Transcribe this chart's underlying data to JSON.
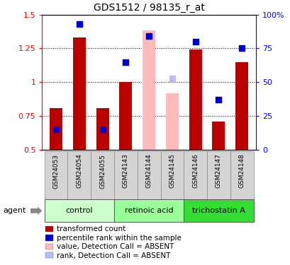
{
  "title": "GDS1512 / 98135_r_at",
  "samples": [
    "GSM24053",
    "GSM24054",
    "GSM24055",
    "GSM24143",
    "GSM24144",
    "GSM24145",
    "GSM24146",
    "GSM24147",
    "GSM24148"
  ],
  "groups": [
    {
      "name": "control",
      "color": "#ccffcc",
      "samples": [
        0,
        1,
        2
      ]
    },
    {
      "name": "retinoic acid",
      "color": "#99ff99",
      "samples": [
        3,
        4,
        5
      ]
    },
    {
      "name": "trichostatin A",
      "color": "#33dd33",
      "samples": [
        6,
        7,
        8
      ]
    }
  ],
  "bar_values": [
    0.81,
    1.33,
    0.81,
    1.0,
    1.385,
    0.92,
    1.24,
    0.71,
    1.15
  ],
  "bar_absent": [
    false,
    false,
    false,
    false,
    true,
    true,
    false,
    false,
    false
  ],
  "rank_values_pct": [
    15,
    93,
    15,
    65,
    84,
    53,
    80,
    37,
    75
  ],
  "rank_absent": [
    false,
    false,
    false,
    false,
    false,
    true,
    false,
    false,
    false
  ],
  "bar_color": "#bb0000",
  "bar_absent_color": "#ffbbbb",
  "rank_color": "#0000cc",
  "rank_absent_color": "#bbbbff",
  "ylim_left": [
    0.5,
    1.5
  ],
  "ylim_right": [
    0,
    100
  ],
  "yticks_left": [
    0.5,
    0.75,
    1.0,
    1.25,
    1.5
  ],
  "ytick_labels_left": [
    "0.5",
    "0.75",
    "1",
    "1.25",
    "1.5"
  ],
  "yticks_right": [
    0,
    25,
    50,
    75,
    100
  ],
  "ytick_labels_right": [
    "0",
    "25",
    "50",
    "75",
    "100%"
  ],
  "bar_width": 0.55,
  "rank_size": 28,
  "legend_items": [
    {
      "color": "#bb0000",
      "label": "transformed count"
    },
    {
      "color": "#0000cc",
      "label": "percentile rank within the sample"
    },
    {
      "color": "#ffbbbb",
      "label": "value, Detection Call = ABSENT"
    },
    {
      "color": "#bbbbff",
      "label": "rank, Detection Call = ABSENT"
    }
  ]
}
